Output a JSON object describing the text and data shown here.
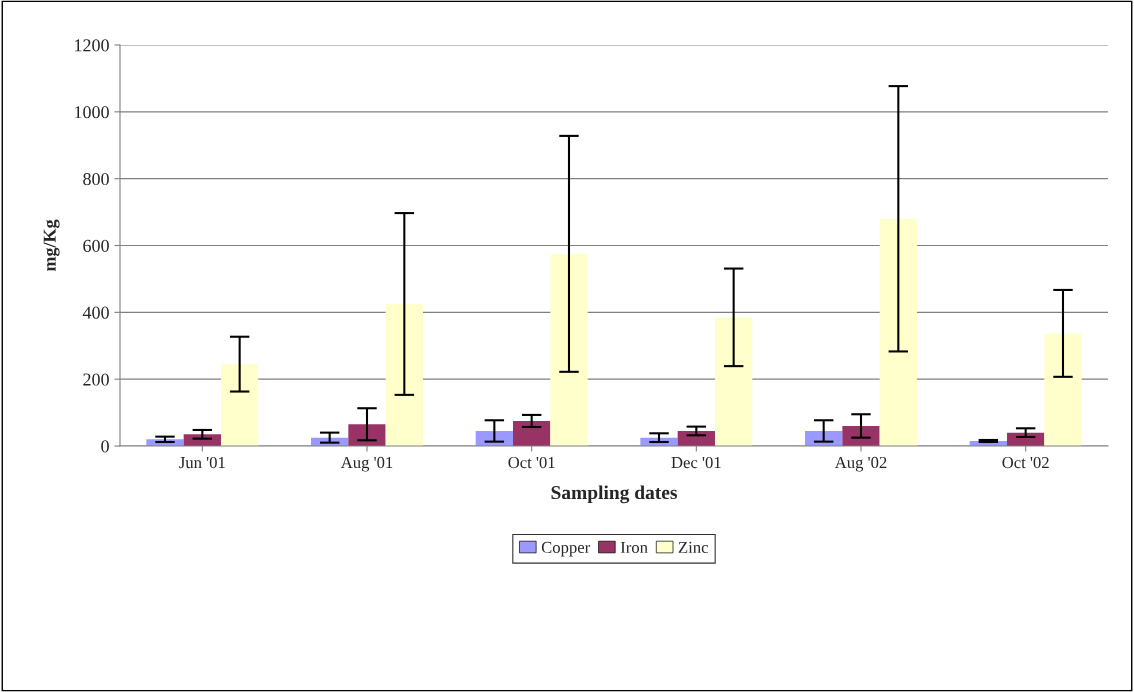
{
  "chart_data": {
    "type": "bar",
    "xlabel": "Sampling dates",
    "ylabel": "mg/Kg",
    "categories": [
      "Jun '01",
      "Aug '01",
      "Oct '01",
      "Dec '01",
      "Aug '02",
      "Oct '02"
    ],
    "series": [
      {
        "name": "Copper",
        "color": "#9999ff",
        "values": [
          20,
          25,
          45,
          25,
          45,
          15
        ],
        "errors": [
          8,
          15,
          32,
          13,
          32,
          3
        ]
      },
      {
        "name": "Iron",
        "color": "#993366",
        "values": [
          35,
          65,
          75,
          45,
          60,
          40
        ],
        "errors": [
          13,
          48,
          18,
          13,
          35,
          13
        ]
      },
      {
        "name": "Zinc",
        "color": "#ffffcc",
        "values": [
          245,
          425,
          575,
          385,
          680,
          337
        ],
        "errors": [
          82,
          272,
          353,
          146,
          397,
          130
        ]
      }
    ],
    "ylim": [
      0,
      1200
    ],
    "yticks": [
      0,
      200,
      400,
      600,
      800,
      1000,
      1200
    ],
    "grid": "y",
    "legend": "bottom"
  }
}
